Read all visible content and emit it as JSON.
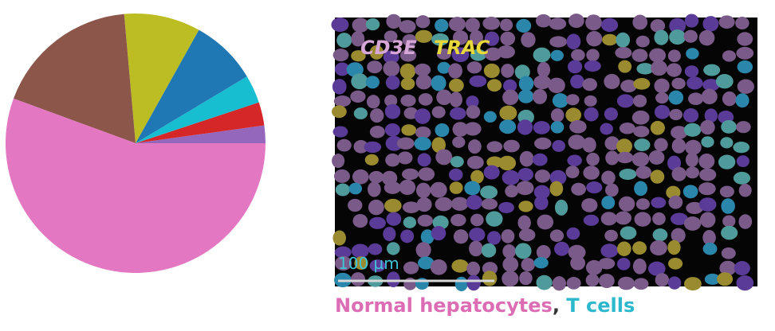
{
  "chart_data": {
    "type": "pie",
    "values": [
      2.2,
      2.9,
      3.5,
      8.3,
      9.5,
      18,
      55.6
    ],
    "colors": [
      "#9467bd",
      "#d62728",
      "#17becf",
      "#1f77b4",
      "#bcbd22",
      "#8c564b",
      "#e377c2"
    ]
  },
  "image": {
    "markers": [
      "CD3E",
      "TRAC"
    ],
    "scale_bar": "100 µm"
  },
  "caption": [
    "Normal hepatocytes",
    ",",
    " T cells"
  ]
}
